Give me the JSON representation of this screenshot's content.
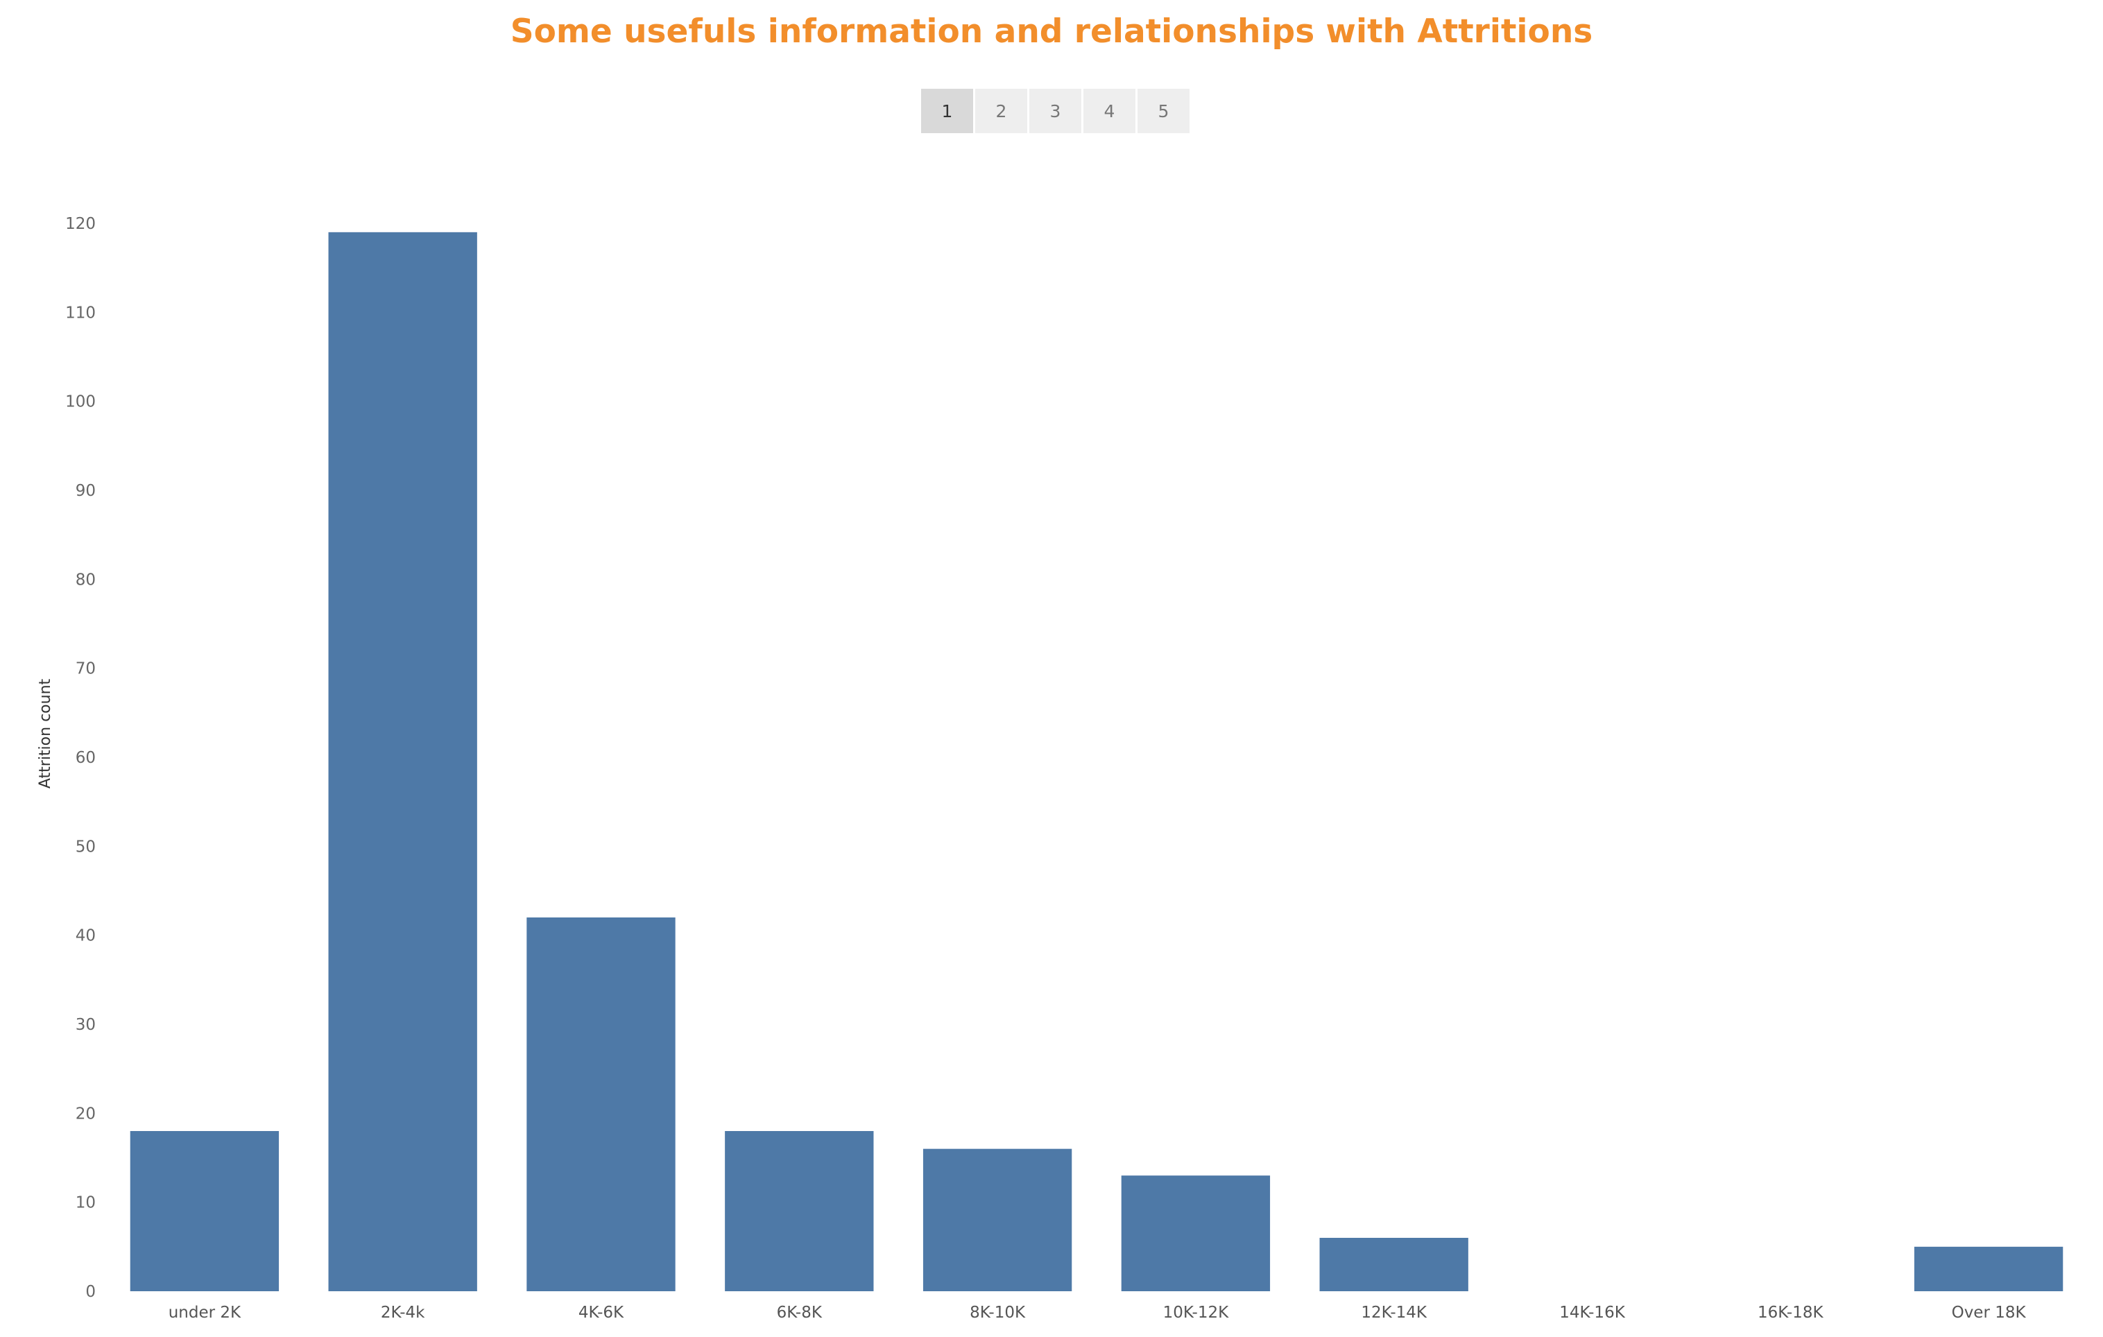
{
  "title": "Some usefuls information and relationships with Attritions",
  "pagination": {
    "pages": [
      "1",
      "2",
      "3",
      "4",
      "5"
    ],
    "active": "1"
  },
  "colors": {
    "bar": "#4e79a7",
    "title": "#f28e2b"
  },
  "chart_data": {
    "type": "bar",
    "title": "",
    "xlabel": "",
    "ylabel": "Attrition count",
    "categories": [
      "under 2K",
      "2K-4k",
      "4K-6K",
      "6K-8K",
      "8K-10K",
      "10K-12K",
      "12K-14K",
      "14K-16K",
      "16K-18K",
      "Over 18K"
    ],
    "values": [
      18,
      119,
      42,
      18,
      16,
      13,
      6,
      0,
      0,
      5
    ],
    "ylim": [
      0,
      120
    ],
    "yticks": [
      0,
      10,
      20,
      30,
      40,
      50,
      60,
      70,
      80,
      90,
      100,
      110,
      120
    ],
    "grid": false,
    "legend": "none"
  }
}
